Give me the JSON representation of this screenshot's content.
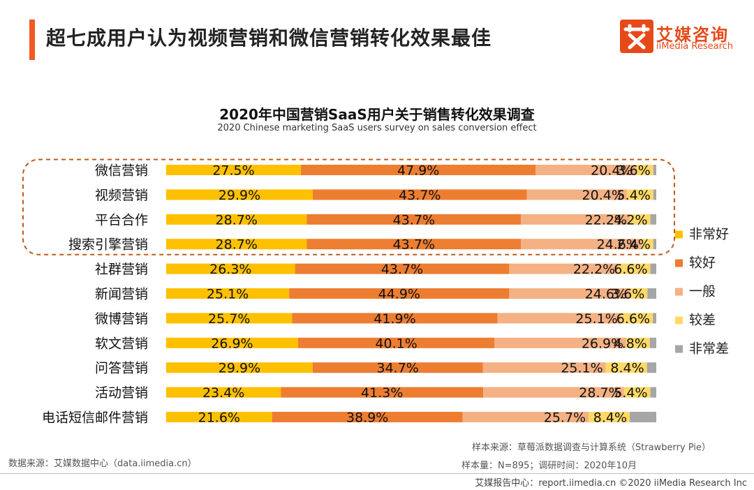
{
  "header": {
    "title": "超七成用户认为视频营销和微信营销转化效果最佳",
    "logo_cn": "艾媒咨询",
    "logo_en": "iiMedia Research"
  },
  "colors": {
    "accent": "#f05a24",
    "very_good": "#ffc000",
    "good": "#ed7d31",
    "average": "#f4b183",
    "poor": "#ffd966",
    "very_poor": "#a6a6a6",
    "highlight_border": "#c0591a"
  },
  "chart_data": {
    "type": "bar",
    "stacked": true,
    "orientation": "horizontal",
    "percent": true,
    "title": "2020年中国营销SaaS用户关于销售转化效果调查",
    "subtitle": "2020 Chinese marketing SaaS users survey on sales conversion effect",
    "categories": [
      "微信营销",
      "视频营销",
      "平台合作",
      "搜索引擎营销",
      "社群营销",
      "新闻营销",
      "微博营销",
      "软文营销",
      "问答营销",
      "活动营销",
      "电话短信邮件营销"
    ],
    "series": [
      {
        "name": "非常好",
        "color": "#ffc000",
        "values": [
          27.5,
          29.9,
          28.7,
          28.7,
          26.3,
          25.1,
          25.7,
          26.9,
          29.9,
          23.4,
          21.6
        ]
      },
      {
        "name": "较好",
        "color": "#ed7d31",
        "values": [
          47.9,
          43.7,
          43.7,
          43.7,
          43.7,
          44.9,
          41.9,
          40.1,
          34.7,
          41.3,
          38.9
        ]
      },
      {
        "name": "一般",
        "color": "#f4b183",
        "values": [
          20.4,
          20.4,
          22.2,
          24.6,
          22.2,
          24.6,
          25.1,
          26.9,
          25.1,
          28.7,
          25.7
        ]
      },
      {
        "name": "较差",
        "color": "#ffd966",
        "values": [
          3.6,
          5.4,
          4.2,
          2.4,
          6.6,
          3.6,
          6.6,
          4.8,
          8.4,
          5.4,
          8.4
        ]
      },
      {
        "name": "非常差",
        "color": "#a6a6a6",
        "values": [
          0.6,
          0.6,
          1.2,
          0.6,
          1.2,
          1.8,
          0.7,
          1.3,
          1.9,
          1.2,
          5.4
        ]
      }
    ],
    "labels": [
      [
        "27.5%",
        "47.9%",
        "20.4%",
        "3.6%"
      ],
      [
        "29.9%",
        "43.7%",
        "20.4%",
        "5.4%"
      ],
      [
        "28.7%",
        "43.7%",
        "22.2%",
        "4.2%"
      ],
      [
        "28.7%",
        "43.7%",
        "24.6%",
        "2.4%"
      ],
      [
        "26.3%",
        "43.7%",
        "22.2%",
        "6.6%"
      ],
      [
        "25.1%",
        "44.9%",
        "24.6%",
        "3.6%"
      ],
      [
        "25.7%",
        "41.9%",
        "25.1%",
        "6.6%"
      ],
      [
        "26.9%",
        "40.1%",
        "26.9%",
        "4.8%"
      ],
      [
        "29.9%",
        "34.7%",
        "25.1%",
        "8.4%"
      ],
      [
        "23.4%",
        "41.3%",
        "28.7%",
        "5.4%"
      ],
      [
        "21.6%",
        "38.9%",
        "25.7%",
        "8.4%"
      ]
    ],
    "highlighted_categories": [
      "微信营销",
      "视频营销",
      "平台合作",
      "搜索引擎营销"
    ],
    "legend_position": "right",
    "xlim": [
      0,
      100
    ],
    "grid": false
  },
  "footer": {
    "data_source": "数据来源：艾媒数据中心（data.iimedia.cn）",
    "sample_source": "样本来源：草莓派数据调查与计算系统（Strawberry Pie）",
    "sample_size": "样本量：N=895；调研时间：2020年10月",
    "copyright": "艾媒报告中心：report.iimedia.cn  ©2020  iiMedia Research  Inc"
  }
}
